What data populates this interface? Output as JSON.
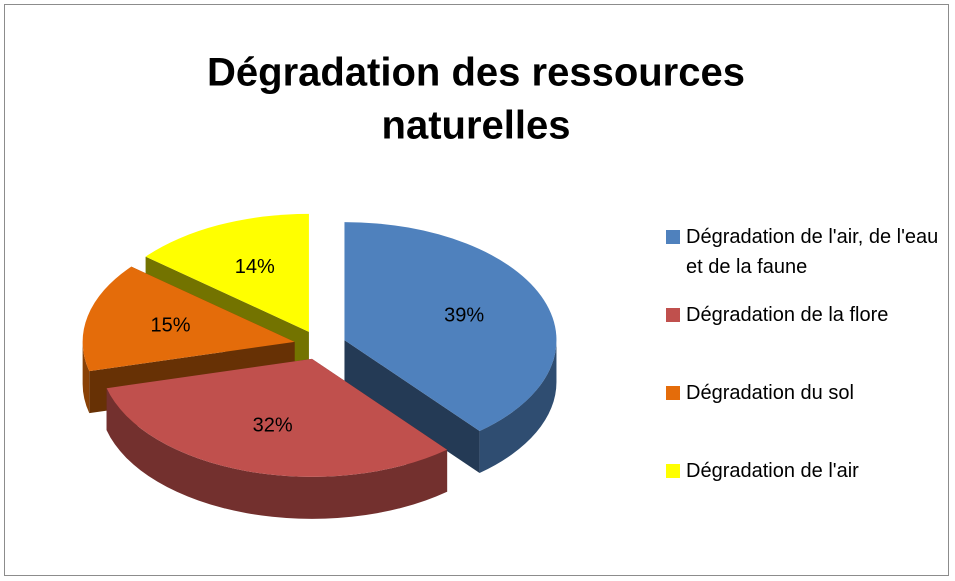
{
  "chart_data": {
    "type": "pie",
    "title": "Dégradation des ressources naturelles",
    "categories": [
      "Dégradation de l'air, de l'eau et de la faune",
      "Dégradation de la flore",
      "Dégradation du sol",
      "Dégradation de l'air"
    ],
    "values": [
      39,
      32,
      15,
      14
    ],
    "value_labels": [
      "39%",
      "32%",
      "15%",
      "14%"
    ],
    "colors": [
      "#4f81bd",
      "#c0504d",
      "#e46c0a",
      "#ffff00"
    ],
    "legend": "right"
  }
}
